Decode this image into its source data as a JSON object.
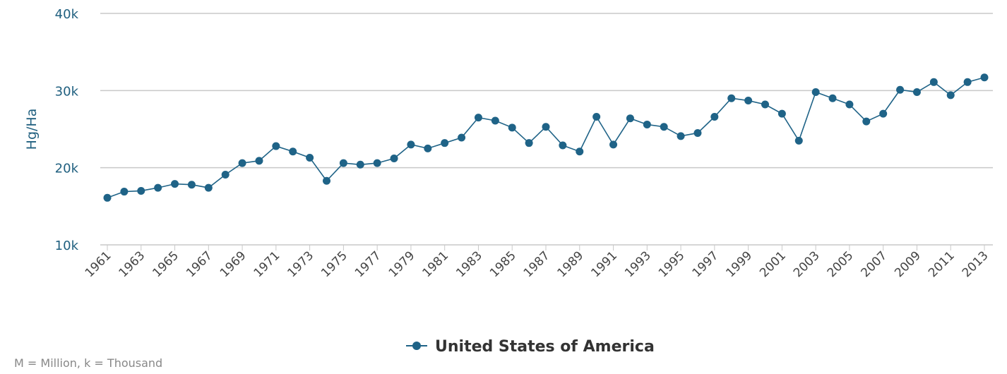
{
  "chart_data": {
    "type": "line",
    "title": "",
    "xlabel": "",
    "ylabel": "Hg/Ha",
    "ylim": [
      10000,
      40000
    ],
    "yticks": [
      {
        "v": 10000,
        "label": "10k"
      },
      {
        "v": 20000,
        "label": "20k"
      },
      {
        "v": 30000,
        "label": "30k"
      },
      {
        "v": 40000,
        "label": "40k"
      }
    ],
    "grid": true,
    "legend_placement": "bottom",
    "color": "#1f6387",
    "x": [
      1961,
      1962,
      1963,
      1964,
      1965,
      1966,
      1967,
      1968,
      1969,
      1970,
      1971,
      1972,
      1973,
      1974,
      1975,
      1976,
      1977,
      1978,
      1979,
      1980,
      1981,
      1982,
      1983,
      1984,
      1985,
      1986,
      1987,
      1988,
      1989,
      1990,
      1991,
      1992,
      1993,
      1994,
      1995,
      1996,
      1997,
      1998,
      1999,
      2000,
      2001,
      2002,
      2003,
      2004,
      2005,
      2006,
      2007,
      2008,
      2009,
      2010,
      2011,
      2012,
      2013
    ],
    "series": [
      {
        "name": "United States of America",
        "values": [
          16100,
          16900,
          17000,
          17400,
          17900,
          17800,
          17400,
          19100,
          20600,
          20900,
          22800,
          22100,
          21300,
          18300,
          20600,
          20400,
          20600,
          21200,
          23000,
          22500,
          23200,
          23900,
          26500,
          26100,
          25200,
          23200,
          25300,
          22900,
          22100,
          26600,
          23000,
          26400,
          25600,
          25300,
          24100,
          24500,
          26600,
          29000,
          28700,
          28200,
          27000,
          23500,
          29800,
          29000,
          28200,
          26000,
          27000,
          30100,
          29800,
          31100,
          29400,
          31100,
          31700
        ]
      }
    ]
  },
  "footnote": "M = Million, k = Thousand"
}
